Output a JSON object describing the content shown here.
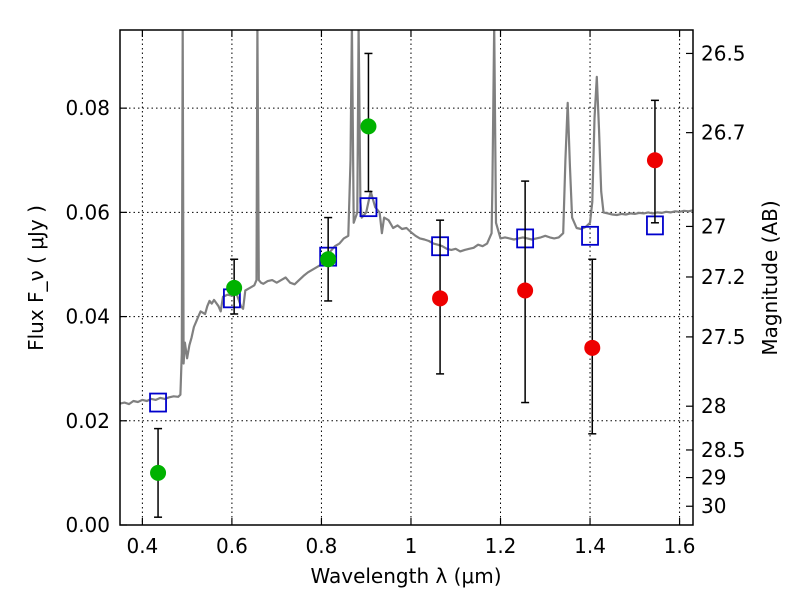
{
  "chart_data": {
    "type": "scatter",
    "title": "",
    "xlabel": "Wavelength  λ (μm)",
    "ylabel": "Flux  F_ν  ( μJy )",
    "y2label": "Magnitude (AB)",
    "xlim": [
      0.35,
      1.63
    ],
    "ylim": [
      0.0,
      0.095
    ],
    "grid": true,
    "x_ticks": [
      0.4,
      0.6,
      0.8,
      1.0,
      1.2,
      1.4,
      1.6
    ],
    "x_tick_labels": [
      "0.4",
      "0.6",
      "0.8",
      "1",
      "1.2",
      "1.4",
      "1.6"
    ],
    "y_ticks": [
      0.0,
      0.02,
      0.04,
      0.06,
      0.08
    ],
    "y_tick_labels": [
      "0.00",
      "0.02",
      "0.04",
      "0.06",
      "0.08"
    ],
    "y2_ticks": [
      {
        "label": "26.5",
        "flux": 0.0905
      },
      {
        "label": "26.7",
        "flux": 0.0753
      },
      {
        "label": "27",
        "flux": 0.0573
      },
      {
        "label": "27.2",
        "flux": 0.0476
      },
      {
        "label": "27.5",
        "flux": 0.0361
      },
      {
        "label": "28",
        "flux": 0.0228
      },
      {
        "label": "28.5",
        "flux": 0.0144
      },
      {
        "label": "29",
        "flux": 0.0091
      },
      {
        "label": "30",
        "flux": 0.0036
      }
    ],
    "series": [
      {
        "kind": "line",
        "color": "#808080",
        "points": [
          [
            0.35,
            0.0233
          ],
          [
            0.36,
            0.0235
          ],
          [
            0.37,
            0.0232
          ],
          [
            0.38,
            0.0238
          ],
          [
            0.39,
            0.0236
          ],
          [
            0.4,
            0.024
          ],
          [
            0.41,
            0.0238
          ],
          [
            0.42,
            0.0242
          ],
          [
            0.43,
            0.024
          ],
          [
            0.44,
            0.0244
          ],
          [
            0.45,
            0.0242
          ],
          [
            0.46,
            0.0245
          ],
          [
            0.47,
            0.0247
          ],
          [
            0.48,
            0.0246
          ],
          [
            0.485,
            0.025
          ],
          [
            0.488,
            0.033
          ],
          [
            0.49,
            0.096
          ],
          [
            0.492,
            0.031
          ],
          [
            0.495,
            0.035
          ],
          [
            0.5,
            0.032
          ],
          [
            0.505,
            0.0345
          ],
          [
            0.51,
            0.036
          ],
          [
            0.515,
            0.038
          ],
          [
            0.52,
            0.039
          ],
          [
            0.525,
            0.04
          ],
          [
            0.53,
            0.041
          ],
          [
            0.54,
            0.0405
          ],
          [
            0.545,
            0.042
          ],
          [
            0.55,
            0.043
          ],
          [
            0.555,
            0.0425
          ],
          [
            0.56,
            0.0432
          ],
          [
            0.57,
            0.042
          ],
          [
            0.575,
            0.041
          ],
          [
            0.58,
            0.0438
          ],
          [
            0.59,
            0.0442
          ],
          [
            0.6,
            0.044
          ],
          [
            0.61,
            0.0445
          ],
          [
            0.62,
            0.042
          ],
          [
            0.625,
            0.0415
          ],
          [
            0.63,
            0.045
          ],
          [
            0.64,
            0.0455
          ],
          [
            0.65,
            0.046
          ],
          [
            0.655,
            0.047
          ],
          [
            0.657,
            0.096
          ],
          [
            0.66,
            0.047
          ],
          [
            0.665,
            0.0465
          ],
          [
            0.67,
            0.0463
          ],
          [
            0.68,
            0.0468
          ],
          [
            0.69,
            0.047
          ],
          [
            0.7,
            0.0465
          ],
          [
            0.71,
            0.047
          ],
          [
            0.72,
            0.0475
          ],
          [
            0.73,
            0.0465
          ],
          [
            0.74,
            0.0462
          ],
          [
            0.75,
            0.047
          ],
          [
            0.76,
            0.0478
          ],
          [
            0.77,
            0.0485
          ],
          [
            0.78,
            0.049
          ],
          [
            0.79,
            0.0495
          ],
          [
            0.8,
            0.05
          ],
          [
            0.81,
            0.0515
          ],
          [
            0.82,
            0.0525
          ],
          [
            0.83,
            0.0535
          ],
          [
            0.84,
            0.054
          ],
          [
            0.85,
            0.055
          ],
          [
            0.86,
            0.0555
          ],
          [
            0.865,
            0.07
          ],
          [
            0.868,
            0.096
          ],
          [
            0.872,
            0.058
          ],
          [
            0.88,
            0.06
          ],
          [
            0.883,
            0.096
          ],
          [
            0.887,
            0.062
          ],
          [
            0.89,
            0.059
          ],
          [
            0.9,
            0.06
          ],
          [
            0.91,
            0.064
          ],
          [
            0.92,
            0.061
          ],
          [
            0.93,
            0.06
          ],
          [
            0.935,
            0.056
          ],
          [
            0.94,
            0.059
          ],
          [
            0.95,
            0.0585
          ],
          [
            0.96,
            0.057
          ],
          [
            0.97,
            0.0575
          ],
          [
            0.98,
            0.0568
          ],
          [
            0.99,
            0.057
          ],
          [
            1.0,
            0.0562
          ],
          [
            1.01,
            0.0555
          ],
          [
            1.02,
            0.055
          ],
          [
            1.03,
            0.0548
          ],
          [
            1.04,
            0.0545
          ],
          [
            1.05,
            0.054
          ],
          [
            1.06,
            0.0538
          ],
          [
            1.07,
            0.0535
          ],
          [
            1.08,
            0.053
          ],
          [
            1.09,
            0.0528
          ],
          [
            1.1,
            0.053
          ],
          [
            1.11,
            0.0525
          ],
          [
            1.12,
            0.0528
          ],
          [
            1.13,
            0.053
          ],
          [
            1.14,
            0.0532
          ],
          [
            1.15,
            0.0538
          ],
          [
            1.16,
            0.0535
          ],
          [
            1.17,
            0.054
          ],
          [
            1.18,
            0.056
          ],
          [
            1.182,
            0.065
          ],
          [
            1.186,
            0.096
          ],
          [
            1.19,
            0.058
          ],
          [
            1.2,
            0.055
          ],
          [
            1.21,
            0.0552
          ],
          [
            1.22,
            0.055
          ],
          [
            1.23,
            0.0548
          ],
          [
            1.24,
            0.055
          ],
          [
            1.25,
            0.0552
          ],
          [
            1.26,
            0.055
          ],
          [
            1.27,
            0.0548
          ],
          [
            1.28,
            0.055
          ],
          [
            1.29,
            0.0552
          ],
          [
            1.3,
            0.0555
          ],
          [
            1.31,
            0.0552
          ],
          [
            1.32,
            0.055
          ],
          [
            1.33,
            0.0552
          ],
          [
            1.34,
            0.056
          ],
          [
            1.345,
            0.07
          ],
          [
            1.35,
            0.081
          ],
          [
            1.355,
            0.069
          ],
          [
            1.36,
            0.059
          ],
          [
            1.37,
            0.057
          ],
          [
            1.38,
            0.0568
          ],
          [
            1.39,
            0.0572
          ],
          [
            1.4,
            0.058
          ],
          [
            1.405,
            0.062
          ],
          [
            1.41,
            0.078
          ],
          [
            1.415,
            0.086
          ],
          [
            1.42,
            0.076
          ],
          [
            1.425,
            0.064
          ],
          [
            1.43,
            0.06
          ],
          [
            1.44,
            0.0598
          ],
          [
            1.45,
            0.0596
          ],
          [
            1.46,
            0.0595
          ],
          [
            1.47,
            0.0597
          ],
          [
            1.48,
            0.0596
          ],
          [
            1.49,
            0.0598
          ],
          [
            1.5,
            0.0597
          ],
          [
            1.51,
            0.0599
          ],
          [
            1.52,
            0.0598
          ],
          [
            1.53,
            0.06
          ],
          [
            1.54,
            0.0598
          ],
          [
            1.55,
            0.06
          ],
          [
            1.56,
            0.0599
          ],
          [
            1.57,
            0.0601
          ],
          [
            1.58,
            0.06
          ],
          [
            1.59,
            0.0602
          ],
          [
            1.6,
            0.0601
          ],
          [
            1.61,
            0.0603
          ],
          [
            1.62,
            0.0602
          ],
          [
            1.63,
            0.0604
          ]
        ]
      },
      {
        "kind": "points",
        "marker": "square-open",
        "color": "#0000cc",
        "x": [
          0.435,
          0.6,
          0.815,
          0.905,
          1.065,
          1.255,
          1.4,
          1.545
        ],
        "y": [
          0.0235,
          0.0435,
          0.0515,
          0.061,
          0.0535,
          0.055,
          0.0555,
          0.0575
        ]
      },
      {
        "kind": "points",
        "marker": "circle",
        "color": "#00b200",
        "x": [
          0.435,
          0.605,
          0.815,
          0.905
        ],
        "y": [
          0.01,
          0.0455,
          0.051,
          0.0765
        ],
        "yerr_low": [
          0.0015,
          0.0405,
          0.043,
          0.064
        ],
        "yerr_high": [
          0.0185,
          0.051,
          0.059,
          0.0905
        ]
      },
      {
        "kind": "points",
        "marker": "circle",
        "color": "#ee0000",
        "x": [
          1.065,
          1.255,
          1.405,
          1.545
        ],
        "y": [
          0.0435,
          0.045,
          0.034,
          0.07
        ],
        "yerr_low": [
          0.029,
          0.0235,
          0.0175,
          0.058
        ],
        "yerr_high": [
          0.0585,
          0.066,
          0.051,
          0.0815
        ]
      }
    ]
  }
}
